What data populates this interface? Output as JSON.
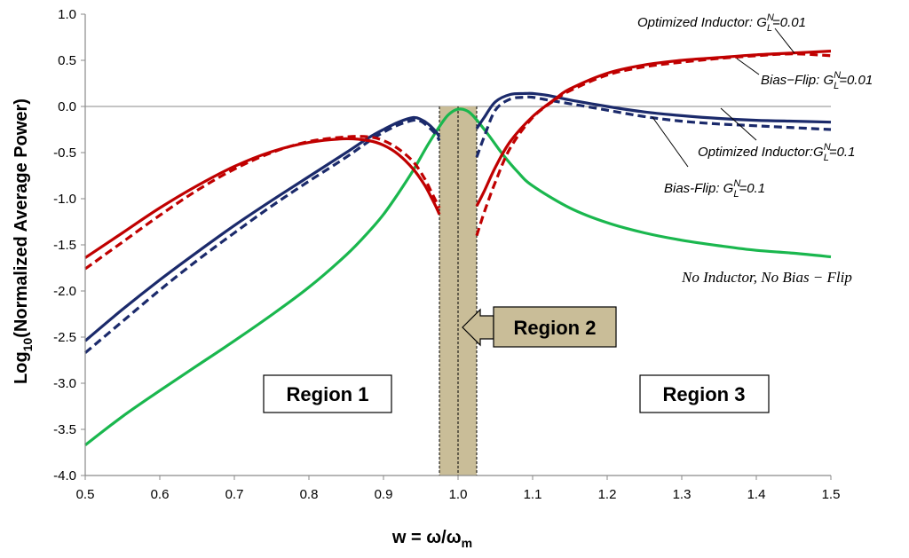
{
  "chart_data": {
    "type": "line",
    "title": "",
    "xlabel": {
      "prefix": "w = ω/ω",
      "sub": "m"
    },
    "ylabel": {
      "prefix": "Log",
      "sub": "10",
      "suffix": "(Normalized Average Power)"
    },
    "xlim": [
      0.5,
      1.5
    ],
    "ylim": [
      -4.0,
      1.0
    ],
    "xticks": [
      "0.5",
      "0.6",
      "0.7",
      "0.8",
      "0.9",
      "1.0",
      "1.1",
      "1.2",
      "1.3",
      "1.4",
      "1.5"
    ],
    "yticks": [
      "1.0",
      "0.5",
      "0.0",
      "-0.5",
      "-1.0",
      "-1.5",
      "-2.0",
      "-2.5",
      "-3.0",
      "-3.5",
      "-4.0"
    ],
    "region2_band": {
      "x0": 0.975,
      "x1": 1.025,
      "center": 1.0,
      "color": "#c9bd98"
    },
    "series": [
      {
        "name": "Optimized Inductor GLN=0.01",
        "color": "#c00000",
        "dash": false,
        "x": [
          0.5,
          0.55,
          0.6,
          0.65,
          0.7,
          0.75,
          0.8,
          0.85,
          0.88,
          0.9,
          0.92,
          0.94,
          0.955,
          0.965,
          0.97,
          0.975,
          null,
          1.025,
          1.035,
          1.05,
          1.07,
          1.1,
          1.13,
          1.15,
          1.2,
          1.25,
          1.3,
          1.35,
          1.4,
          1.45,
          1.5
        ],
        "y": [
          -1.64,
          -1.37,
          -1.1,
          -0.86,
          -0.65,
          -0.49,
          -0.39,
          -0.35,
          -0.37,
          -0.42,
          -0.52,
          -0.68,
          -0.85,
          -1.0,
          -1.08,
          -1.17,
          null,
          -1.08,
          -0.92,
          -0.66,
          -0.38,
          -0.11,
          0.08,
          0.19,
          0.36,
          0.45,
          0.5,
          0.53,
          0.56,
          0.58,
          0.6
        ]
      },
      {
        "name": "Bias-Flip GLN=0.01",
        "color": "#c00000",
        "dash": true,
        "x": [
          0.5,
          0.55,
          0.6,
          0.65,
          0.7,
          0.75,
          0.8,
          0.85,
          0.88,
          0.9,
          0.92,
          0.94,
          0.955,
          0.965,
          0.97,
          0.975,
          null,
          1.025,
          1.035,
          1.05,
          1.07,
          1.1,
          1.13,
          1.15,
          1.2,
          1.25,
          1.3,
          1.35,
          1.4,
          1.45,
          1.5
        ],
        "y": [
          -1.76,
          -1.47,
          -1.18,
          -0.91,
          -0.68,
          -0.5,
          -0.38,
          -0.33,
          -0.33,
          -0.37,
          -0.46,
          -0.6,
          -0.78,
          -0.94,
          -1.02,
          -1.1,
          null,
          -1.4,
          -1.15,
          -0.82,
          -0.45,
          -0.12,
          0.07,
          0.17,
          0.34,
          0.43,
          0.48,
          0.52,
          0.55,
          0.57,
          0.55
        ]
      },
      {
        "name": "Optimized Inductor GLN=0.1",
        "color": "#1b2a6b",
        "dash": false,
        "x": [
          0.5,
          0.55,
          0.6,
          0.65,
          0.7,
          0.75,
          0.8,
          0.85,
          0.88,
          0.9,
          0.92,
          0.94,
          0.95,
          0.96,
          0.97,
          0.975,
          null,
          1.025,
          1.035,
          1.05,
          1.07,
          1.09,
          1.1,
          1.12,
          1.15,
          1.2,
          1.25,
          1.3,
          1.35,
          1.4,
          1.45,
          1.5
        ],
        "y": [
          -2.54,
          -2.2,
          -1.88,
          -1.58,
          -1.29,
          -1.02,
          -0.76,
          -0.5,
          -0.34,
          -0.25,
          -0.17,
          -0.12,
          -0.14,
          -0.19,
          -0.27,
          -0.33,
          null,
          -0.24,
          -0.12,
          0.05,
          0.13,
          0.14,
          0.14,
          0.12,
          0.07,
          0.0,
          -0.06,
          -0.1,
          -0.13,
          -0.15,
          -0.16,
          -0.17
        ]
      },
      {
        "name": "Bias-Flip GLN=0.1",
        "color": "#1b2a6b",
        "dash": true,
        "x": [
          0.5,
          0.55,
          0.6,
          0.65,
          0.7,
          0.75,
          0.8,
          0.85,
          0.88,
          0.9,
          0.92,
          0.94,
          0.95,
          0.96,
          0.97,
          0.975,
          null,
          1.025,
          1.035,
          1.05,
          1.07,
          1.09,
          1.1,
          1.12,
          1.15,
          1.2,
          1.25,
          1.3,
          1.35,
          1.4,
          1.45,
          1.5
        ],
        "y": [
          -2.67,
          -2.33,
          -1.99,
          -1.67,
          -1.37,
          -1.08,
          -0.81,
          -0.55,
          -0.38,
          -0.28,
          -0.2,
          -0.15,
          -0.16,
          -0.22,
          -0.3,
          -0.37,
          null,
          -0.55,
          -0.33,
          -0.04,
          0.08,
          0.1,
          0.1,
          0.07,
          0.03,
          -0.04,
          -0.11,
          -0.16,
          -0.19,
          -0.21,
          -0.23,
          -0.25
        ]
      },
      {
        "name": "No Inductor, No Bias-Flip",
        "color": "#1ab74e",
        "dash": false,
        "x": [
          0.5,
          0.55,
          0.6,
          0.65,
          0.7,
          0.75,
          0.8,
          0.85,
          0.88,
          0.9,
          0.92,
          0.94,
          0.96,
          0.98,
          0.99,
          1.0,
          1.01,
          1.02,
          1.04,
          1.06,
          1.08,
          1.1,
          1.15,
          1.2,
          1.25,
          1.3,
          1.35,
          1.4,
          1.45,
          1.5
        ],
        "y": [
          -3.67,
          -3.36,
          -3.08,
          -2.81,
          -2.54,
          -2.26,
          -1.96,
          -1.61,
          -1.36,
          -1.17,
          -0.94,
          -0.69,
          -0.41,
          -0.16,
          -0.07,
          -0.03,
          -0.04,
          -0.1,
          -0.3,
          -0.52,
          -0.71,
          -0.86,
          -1.1,
          -1.26,
          -1.37,
          -1.45,
          -1.51,
          -1.56,
          -1.59,
          -1.63
        ]
      }
    ],
    "annotations": [
      {
        "id": "opt001",
        "prefix": "Optimized Inductor: G",
        "sub": "L",
        "sup": "N",
        "suffix": "=0.01"
      },
      {
        "id": "bf001",
        "prefix": "Bias−Flip: G",
        "sub": "L",
        "sup": "N",
        "suffix": "=0.01"
      },
      {
        "id": "opt01",
        "prefix": "Optimized Inductor:G",
        "sub": "L",
        "sup": "N",
        "suffix": "=0.1"
      },
      {
        "id": "bf01",
        "prefix": "Bias-Flip: G",
        "sub": "L",
        "sup": "N",
        "suffix": "=0.1"
      },
      {
        "id": "noind",
        "text": "No Inductor, No Bias − Flip"
      }
    ],
    "regions": {
      "region1": "Region 1",
      "region2": "Region 2",
      "region3": "Region 3"
    }
  }
}
